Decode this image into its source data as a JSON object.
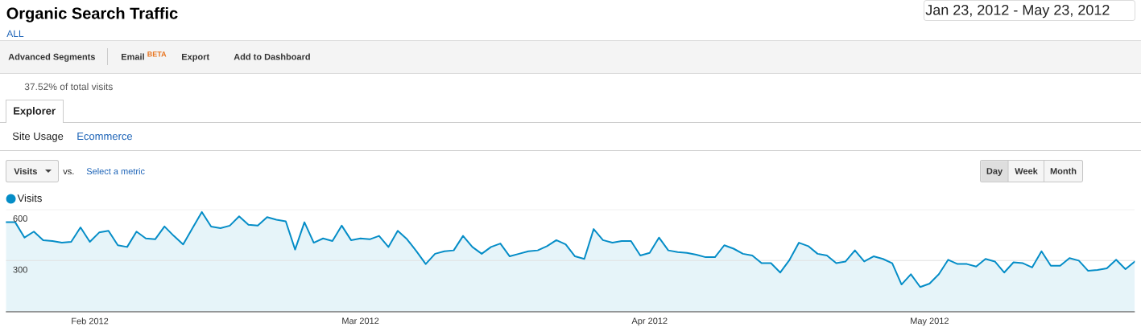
{
  "chart_data": {
    "type": "area",
    "title": "Organic Search Traffic",
    "x": [
      "2012-01-23",
      "2012-01-24",
      "2012-01-25",
      "2012-01-26",
      "2012-01-27",
      "2012-01-28",
      "2012-01-29",
      "2012-01-30",
      "2012-01-31",
      "2012-02-01",
      "2012-02-02",
      "2012-02-03",
      "2012-02-04",
      "2012-02-05",
      "2012-02-06",
      "2012-02-07",
      "2012-02-08",
      "2012-02-09",
      "2012-02-10",
      "2012-02-11",
      "2012-02-12",
      "2012-02-13",
      "2012-02-14",
      "2012-02-15",
      "2012-02-16",
      "2012-02-17",
      "2012-02-18",
      "2012-02-19",
      "2012-02-20",
      "2012-02-21",
      "2012-02-22",
      "2012-02-23",
      "2012-02-24",
      "2012-02-25",
      "2012-02-26",
      "2012-02-27",
      "2012-02-28",
      "2012-02-29",
      "2012-03-01",
      "2012-03-02",
      "2012-03-03",
      "2012-03-04",
      "2012-03-05",
      "2012-03-06",
      "2012-03-07",
      "2012-03-08",
      "2012-03-09",
      "2012-03-10",
      "2012-03-11",
      "2012-03-12",
      "2012-03-13",
      "2012-03-14",
      "2012-03-15",
      "2012-03-16",
      "2012-03-17",
      "2012-03-18",
      "2012-03-19",
      "2012-03-20",
      "2012-03-21",
      "2012-03-22",
      "2012-03-23",
      "2012-03-24",
      "2012-03-25",
      "2012-03-26",
      "2012-03-27",
      "2012-03-28",
      "2012-03-29",
      "2012-03-30",
      "2012-03-31",
      "2012-04-01",
      "2012-04-02",
      "2012-04-03",
      "2012-04-04",
      "2012-04-05",
      "2012-04-06",
      "2012-04-07",
      "2012-04-08",
      "2012-04-09",
      "2012-04-10",
      "2012-04-11",
      "2012-04-12",
      "2012-04-13",
      "2012-04-14",
      "2012-04-15",
      "2012-04-16",
      "2012-04-17",
      "2012-04-18",
      "2012-04-19",
      "2012-04-20",
      "2012-04-21",
      "2012-04-22",
      "2012-04-23",
      "2012-04-24",
      "2012-04-25",
      "2012-04-26",
      "2012-04-27",
      "2012-04-28",
      "2012-04-29",
      "2012-04-30",
      "2012-05-01",
      "2012-05-02",
      "2012-05-03",
      "2012-05-04",
      "2012-05-05",
      "2012-05-06",
      "2012-05-07",
      "2012-05-08",
      "2012-05-09",
      "2012-05-10",
      "2012-05-11",
      "2012-05-12",
      "2012-05-13",
      "2012-05-14",
      "2012-05-15",
      "2012-05-16",
      "2012-05-17",
      "2012-05-18",
      "2012-05-19",
      "2012-05-20",
      "2012-05-21",
      "2012-05-22",
      "2012-05-23"
    ],
    "series": [
      {
        "name": "Visits",
        "color": "#058dc7",
        "values": [
          525,
          525,
          435,
          470,
          420,
          415,
          405,
          410,
          495,
          410,
          465,
          475,
          390,
          380,
          470,
          430,
          425,
          500,
          445,
          395,
          490,
          585,
          500,
          490,
          505,
          560,
          510,
          505,
          555,
          540,
          530,
          365,
          525,
          405,
          430,
          415,
          505,
          420,
          430,
          425,
          445,
          380,
          475,
          425,
          355,
          280,
          340,
          355,
          360,
          445,
          380,
          340,
          380,
          400,
          325,
          340,
          355,
          360,
          385,
          420,
          395,
          325,
          310,
          485,
          420,
          405,
          415,
          415,
          330,
          345,
          435,
          360,
          350,
          345,
          335,
          320,
          320,
          390,
          370,
          340,
          330,
          285,
          285,
          230,
          305,
          405,
          385,
          340,
          330,
          285,
          295,
          360,
          295,
          325,
          310,
          285,
          160,
          220,
          145,
          165,
          220,
          305,
          280,
          280,
          265,
          310,
          295,
          230,
          290,
          285,
          260,
          355,
          270,
          270,
          315,
          300,
          240,
          245,
          255,
          305,
          250,
          295
        ]
      }
    ],
    "xlim": [
      "2012-01-23",
      "2012-05-23"
    ],
    "xticks": [
      {
        "value": "2012-02-01",
        "label": "Feb 2012"
      },
      {
        "value": "2012-03-01",
        "label": "Mar 2012"
      },
      {
        "value": "2012-04-01",
        "label": "Apr 2012"
      },
      {
        "value": "2012-05-01",
        "label": "May 2012"
      }
    ],
    "ylim": [
      0,
      600
    ],
    "yticks": [
      300,
      600
    ],
    "grid": "y",
    "legend": "top left",
    "annotations": [
      "ALL",
      "Advanced Segments",
      "Email",
      "BETA",
      "Export",
      "Add to Dashboard",
      "37.52% of total visits",
      "Explorer",
      "Site Usage",
      "Ecommerce",
      "Visits",
      "vs.",
      "Select a metric",
      "Day",
      "Week",
      "Month",
      "Jan 23, 2012 - May 23, 2012"
    ]
  }
}
